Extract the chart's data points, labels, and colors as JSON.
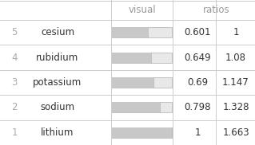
{
  "rows": [
    {
      "rank": "5",
      "name": "cesium",
      "ratio_val": 0.601,
      "ratio_str": "0.601",
      "ratio2": "1"
    },
    {
      "rank": "4",
      "name": "rubidium",
      "ratio_val": 0.649,
      "ratio_str": "0.649",
      "ratio2": "1.08"
    },
    {
      "rank": "3",
      "name": "potassium",
      "ratio_val": 0.69,
      "ratio_str": "0.69",
      "ratio2": "1.147"
    },
    {
      "rank": "2",
      "name": "sodium",
      "ratio_val": 0.798,
      "ratio_str": "0.798",
      "ratio2": "1.328"
    },
    {
      "rank": "1",
      "name": "lithium",
      "ratio_val": 1.0,
      "ratio_str": "1",
      "ratio2": "1.663"
    }
  ],
  "header_visual": "visual",
  "header_ratios": "ratios",
  "table_bg": "#ffffff",
  "text_color_main": "#333333",
  "text_color_muted": "#aaaaaa",
  "text_color_header": "#999999",
  "line_color": "#cccccc",
  "bar_dark": "#c8c8c8",
  "bar_light": "#e8e8e8",
  "bar_edge": "#bbbbbb",
  "font_size_header": 8.5,
  "font_size_body": 8.5
}
